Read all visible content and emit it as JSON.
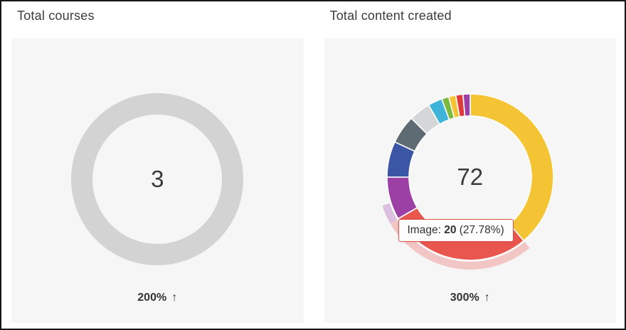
{
  "window": {
    "border_color": "#161616",
    "background": "#ffffff",
    "panel_background": "#f7f6f6"
  },
  "cards": [
    {
      "title": "Total courses",
      "center_value": "3",
      "footer": {
        "percent": "200%",
        "arrow": "↑"
      }
    },
    {
      "title": "Total content created",
      "center_value": "72",
      "footer": {
        "percent": "300%",
        "arrow": "↑"
      },
      "tooltip": {
        "label": "Image:",
        "value": "20",
        "percent": "(27.78%)",
        "border_color": "#dd564e",
        "background": "#fdfdfd"
      }
    }
  ],
  "chart_data": [
    {
      "type": "pie",
      "title": "Total courses",
      "center_label": "3",
      "total_value": 3,
      "footer_trend": "200% ↑",
      "outer_radius": 121,
      "inner_radius": 91,
      "segments": [
        {
          "name": "courses",
          "value": 3,
          "color": "#d3d3d3"
        }
      ]
    },
    {
      "type": "pie",
      "title": "Total content created",
      "center_label": "72",
      "total_value": 72,
      "footer_trend": "300% ↑",
      "outer_radius": 117,
      "inner_radius": 86,
      "hovered_segment": "Image",
      "tooltip_text": "Image: 20 (27.78%)",
      "segments": [
        {
          "value": 28,
          "color": "#f4c434"
        },
        {
          "name": "Image",
          "value": 20,
          "color": "#e8564e",
          "hovered": true,
          "halo": 1
        },
        {
          "value": 6,
          "color": "#9c40a5",
          "halo": 0.4
        },
        {
          "value": 5,
          "color": "#3a56a5"
        },
        {
          "value": 4,
          "color": "#5e6b73"
        },
        {
          "value": 3,
          "color": "#d4d6d7"
        },
        {
          "value": 2,
          "color": "#3fb4d8"
        },
        {
          "value": 1,
          "color": "#7cba3f"
        },
        {
          "value": 1,
          "color": "#f4c434"
        },
        {
          "value": 1,
          "color": "#df3a3c"
        },
        {
          "value": 1,
          "color": "#9c40a5"
        }
      ]
    }
  ]
}
